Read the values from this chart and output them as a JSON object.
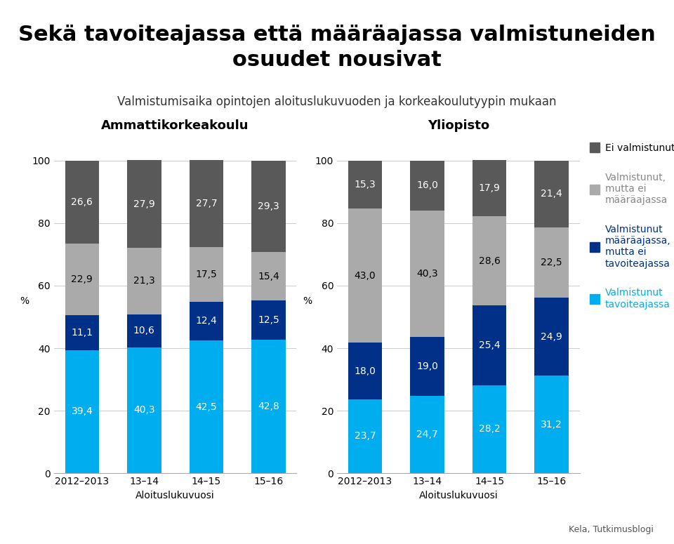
{
  "title": "Sekä tavoiteajassa että määräajassa valmistuneiden\nosuudet nousivat",
  "subtitle": "Valmistumisaika opintojen aloituslukuvuoden ja korkeakoulutyypin mukaan",
  "categories": [
    "2012–2013",
    "13–14",
    "14–15",
    "15–16"
  ],
  "xlabel": "Aloituslukuvuosi",
  "ylabel": "%",
  "source": "Kela, Tutkimusblogi",
  "panel_titles": [
    "Ammattikorkeakoulu",
    "Yliopisto"
  ],
  "colors": {
    "tavoiteajassa": "#00AEEF",
    "maaraaajassa": "#003087",
    "ei_maaraaajassa": "#AAAAAA",
    "ei_valmistunut": "#595959"
  },
  "legend_labels": [
    "Ei valmistunut",
    "Valmistunut,\nmutta ei\nmääräajassa",
    "Valmistunut\nmääräajassa,\nmutta ei\ntavoiteajassa",
    "Valmistunut\ntavoiteajassa"
  ],
  "legend_text_colors": [
    "#000000",
    "#888888",
    "#003087",
    "#00AEEF"
  ],
  "amk_data": {
    "tavoiteajassa": [
      39.4,
      40.3,
      42.5,
      42.8
    ],
    "maaraaajassa": [
      11.1,
      10.6,
      12.4,
      12.5
    ],
    "ei_maaraaajassa": [
      22.9,
      21.3,
      17.5,
      15.4
    ],
    "ei_valmistunut": [
      26.6,
      27.9,
      27.7,
      29.3
    ]
  },
  "yo_data": {
    "tavoiteajassa": [
      23.7,
      24.7,
      28.2,
      31.2
    ],
    "maaraaajassa": [
      18.0,
      19.0,
      25.4,
      24.9
    ],
    "ei_maaraaajassa": [
      43.0,
      40.3,
      28.6,
      22.5
    ],
    "ei_valmistunut": [
      15.3,
      16.0,
      17.9,
      21.4
    ]
  },
  "bar_width": 0.55,
  "ylim": [
    0,
    107
  ],
  "yticks": [
    0,
    20,
    40,
    60,
    80,
    100
  ],
  "background_color": "#FFFFFF",
  "title_fontsize": 22,
  "subtitle_fontsize": 12,
  "label_fontsize": 10,
  "panel_title_fontsize": 13,
  "tick_fontsize": 10,
  "annotation_fontsize": 10,
  "legend_fontsize": 10
}
